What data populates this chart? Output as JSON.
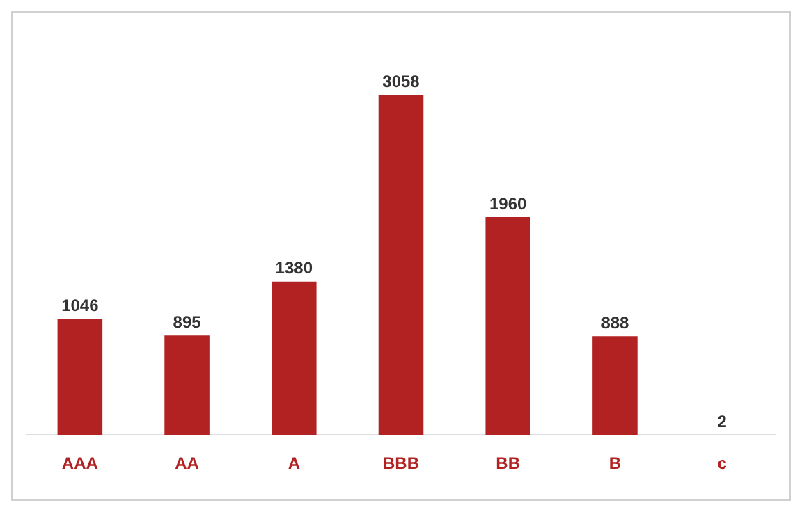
{
  "chart_data": {
    "type": "bar",
    "categories": [
      "AAA",
      "AA",
      "A",
      "BBB",
      "BB",
      "B",
      "c"
    ],
    "values": [
      1046,
      895,
      1380,
      3058,
      1960,
      888,
      2
    ],
    "color": "#b22222",
    "data_labels": true,
    "tick_labels": "x",
    "grid": false,
    "legend": false
  }
}
